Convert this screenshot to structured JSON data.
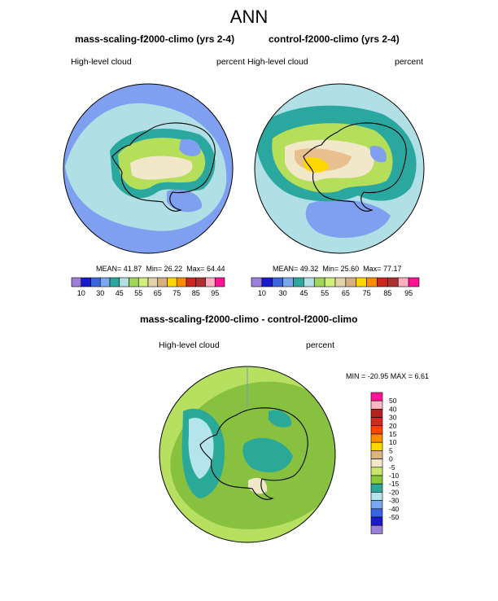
{
  "title": "ANN",
  "panels": [
    {
      "title": "mass-scaling-f2000-climo (yrs 2-4)",
      "variable": "High-level cloud",
      "units": "percent",
      "stats": {
        "mean_label": "MEAN=",
        "mean": "41.87",
        "min_label": "Min=",
        "min": "26.22",
        "max_label": "Max=",
        "max": "64.44"
      }
    },
    {
      "title": "control-f2000-climo (yrs 2-4)",
      "variable": "High-level cloud",
      "units": "percent",
      "stats": {
        "mean_label": "MEAN=",
        "mean": "49.32",
        "min_label": "Min=",
        "min": "25.60",
        "max_label": "Max=",
        "max": "77.17"
      }
    },
    {
      "title": "mass-scaling-f2000-climo - control-f2000-climo",
      "variable": "High-level cloud",
      "units": "percent",
      "stats_text": "MIN = -20.95 MAX =   6.61"
    }
  ],
  "colorbar_abs": {
    "labels": [
      "10",
      "30",
      "45",
      "55",
      "65",
      "75",
      "85",
      "95"
    ],
    "colors": [
      "#9b7fd8",
      "#1a1acc",
      "#3a66e0",
      "#7aa8f0",
      "#2aa8a0",
      "#b0e0e6",
      "#9fd65a",
      "#d0f07a",
      "#e3d3a8",
      "#d8b080",
      "#ffd700",
      "#ff8c00",
      "#c8281e",
      "#b03030",
      "#ffb0c0",
      "#ff1493"
    ]
  },
  "colorbar_diff": {
    "labels": [
      "50",
      "40",
      "30",
      "20",
      "15",
      "10",
      "5",
      "0",
      "-5",
      "-10",
      "-15",
      "-20",
      "-30",
      "-40",
      "-50"
    ],
    "colors": [
      "#ff1493",
      "#ffb6c1",
      "#b22222",
      "#d22a1e",
      "#ff4500",
      "#ff8c00",
      "#ffd700",
      "#dcb482",
      "#f5e6c8",
      "#c8e66e",
      "#8cc83c",
      "#2aa898",
      "#b4e4ec",
      "#7aa8f0",
      "#3a64e0",
      "#1a1acc",
      "#9b7fd8"
    ]
  },
  "map_colors": {
    "ocean_a": "#7f9ff0",
    "ocean_b": "#b0e0e6",
    "land_low": "#2aa8a0",
    "land_mid": "#b5de5a",
    "land_hi": "#f0e8c8",
    "land_peak": "#e8c090",
    "diff_bg": "#b8e060",
    "diff_dark": "#88c040",
    "diff_teal": "#2aa898",
    "diff_lt": "#b4e4ec"
  }
}
